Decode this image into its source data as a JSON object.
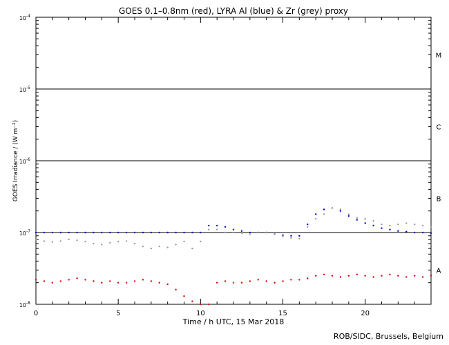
{
  "chart_data": {
    "type": "scatter",
    "title": "GOES 0.1–0.8nm (red), LYRA Al (blue) & Zr (grey) proxy",
    "xlabel": "Time / h UTC, 15 Mar 2018",
    "ylabel": "GOES Irradiance / (W m⁻²)",
    "xlim": [
      0,
      24
    ],
    "ylim": [
      1e-08,
      0.0001
    ],
    "yscale": "log",
    "x_ticks": [
      0,
      5,
      10,
      15,
      20
    ],
    "x_tick_labels": [
      "0",
      "5",
      "10",
      "15",
      "20"
    ],
    "y_ticks": [
      1e-08,
      1e-07,
      1e-06,
      1e-05,
      0.0001
    ],
    "y_tick_labels": [
      {
        "base": "10",
        "exp": "-8"
      },
      {
        "base": "10",
        "exp": "-7"
      },
      {
        "base": "10",
        "exp": "-6"
      },
      {
        "base": "10",
        "exp": "-5"
      },
      {
        "base": "10",
        "exp": "-4"
      }
    ],
    "flare_class_lines": [
      1e-07,
      1e-06,
      1e-05
    ],
    "flare_classes": [
      {
        "label": "M",
        "value": 3e-05
      },
      {
        "label": "C",
        "value": 3e-06
      },
      {
        "label": "B",
        "value": 3e-07
      },
      {
        "label": "A",
        "value": 3e-08
      }
    ],
    "grid": false,
    "series": [
      {
        "color": "#dd0000",
        "x": [
          0,
          0.5,
          1,
          1.5,
          2,
          2.5,
          3,
          3.5,
          4,
          4.5,
          5,
          5.5,
          6,
          6.5,
          7,
          7.5,
          8,
          8.5,
          9,
          9.5,
          10,
          10.5,
          11,
          11.5,
          12,
          12.5,
          13,
          13.5,
          14,
          14.5,
          15,
          15.5,
          16,
          16.5,
          17,
          17.5,
          18,
          18.5,
          19,
          19.5,
          20,
          20.5,
          21,
          21.5,
          22,
          22.5,
          23,
          23.5,
          24
        ],
        "y": [
          2.2e-08,
          2.1e-08,
          2e-08,
          2.1e-08,
          2.2e-08,
          2.3e-08,
          2.2e-08,
          2.1e-08,
          2e-08,
          2.1e-08,
          2e-08,
          2e-08,
          2.1e-08,
          2.2e-08,
          2.1e-08,
          2e-08,
          1.9e-08,
          1.6e-08,
          1.3e-08,
          1.1e-08,
          1e-08,
          1e-08,
          2e-08,
          2.1e-08,
          2e-08,
          2e-08,
          2.1e-08,
          2.2e-08,
          2.1e-08,
          2e-08,
          2.1e-08,
          2.2e-08,
          2.2e-08,
          2.3e-08,
          2.5e-08,
          2.6e-08,
          2.5e-08,
          2.4e-08,
          2.5e-08,
          2.6e-08,
          2.5e-08,
          2.4e-08,
          2.5e-08,
          2.6e-08,
          2.5e-08,
          2.4e-08,
          2.5e-08,
          2.4e-08,
          2.5e-08
        ]
      },
      {
        "color": "#0000cc",
        "x": [
          0,
          0.5,
          1,
          1.5,
          2,
          2.5,
          3,
          3.5,
          4,
          4.5,
          5,
          5.5,
          6,
          6.5,
          7,
          7.5,
          8,
          8.5,
          9,
          9.5,
          10,
          10.5,
          11,
          11.5,
          12,
          12.5,
          13,
          13.5,
          14,
          14.5,
          15,
          15.5,
          16,
          16.5,
          17,
          17.5,
          18,
          18.5,
          19,
          19.5,
          20,
          20.5,
          21,
          21.5,
          22,
          22.5,
          23,
          23.5,
          24
        ],
        "y": [
          1e-07,
          1e-07,
          1e-07,
          1e-07,
          1e-07,
          1e-07,
          1e-07,
          1e-07,
          1e-07,
          1e-07,
          1e-07,
          1e-07,
          1e-07,
          1e-07,
          1e-07,
          1e-07,
          1e-07,
          1e-07,
          1e-07,
          1e-07,
          1e-07,
          1.25e-07,
          1.25e-07,
          1.2e-07,
          1.1e-07,
          1.05e-07,
          1e-07,
          1e-07,
          1e-07,
          9.5e-08,
          9.2e-08,
          9e-08,
          9e-08,
          1.3e-07,
          1.8e-07,
          2.1e-07,
          2.2e-07,
          2e-07,
          1.7e-07,
          1.5e-07,
          1.35e-07,
          1.25e-07,
          1.15e-07,
          1.1e-07,
          1.05e-07,
          1.03e-07,
          1e-07,
          1e-07,
          9.8e-08
        ]
      },
      {
        "color": "#999999",
        "x": [
          0,
          0.5,
          1,
          1.5,
          2,
          2.5,
          3,
          3.5,
          4,
          4.5,
          5,
          5.5,
          6,
          6.5,
          7,
          7.5,
          8,
          8.5,
          9,
          9.5,
          10,
          10.5,
          11,
          11.5,
          12,
          12.5,
          13,
          13.5,
          14,
          14.5,
          15,
          15.5,
          16,
          16.5,
          17,
          17.5,
          18,
          18.5,
          19,
          19.5,
          20,
          20.5,
          21,
          21.5,
          22,
          22.5,
          23,
          23.5,
          24
        ],
        "y": [
          8e-08,
          7.6e-08,
          7.4e-08,
          7.6e-08,
          8e-08,
          7.8e-08,
          7.5e-08,
          7e-08,
          6.8e-08,
          7.2e-08,
          7.5e-08,
          7.6e-08,
          7e-08,
          6.4e-08,
          6e-08,
          6.4e-08,
          6.2e-08,
          6.8e-08,
          7.5e-08,
          6e-08,
          7.5e-08,
          1.1e-07,
          1.1e-07,
          1e-07,
          1e-07,
          9.8e-08,
          9.5e-08,
          1e-07,
          1e-07,
          9.5e-08,
          8.8e-08,
          8.4e-08,
          8.2e-08,
          1.2e-07,
          1.55e-07,
          1.8e-07,
          2.2e-07,
          2.1e-07,
          1.8e-07,
          1.6e-07,
          1.55e-07,
          1.45e-07,
          1.3e-07,
          1.25e-07,
          1.3e-07,
          1.35e-07,
          1.3e-07,
          1.25e-07,
          1.2e-07
        ]
      }
    ]
  },
  "footer": {
    "credit": "ROB/SIDC, Brussels, Belgium"
  }
}
